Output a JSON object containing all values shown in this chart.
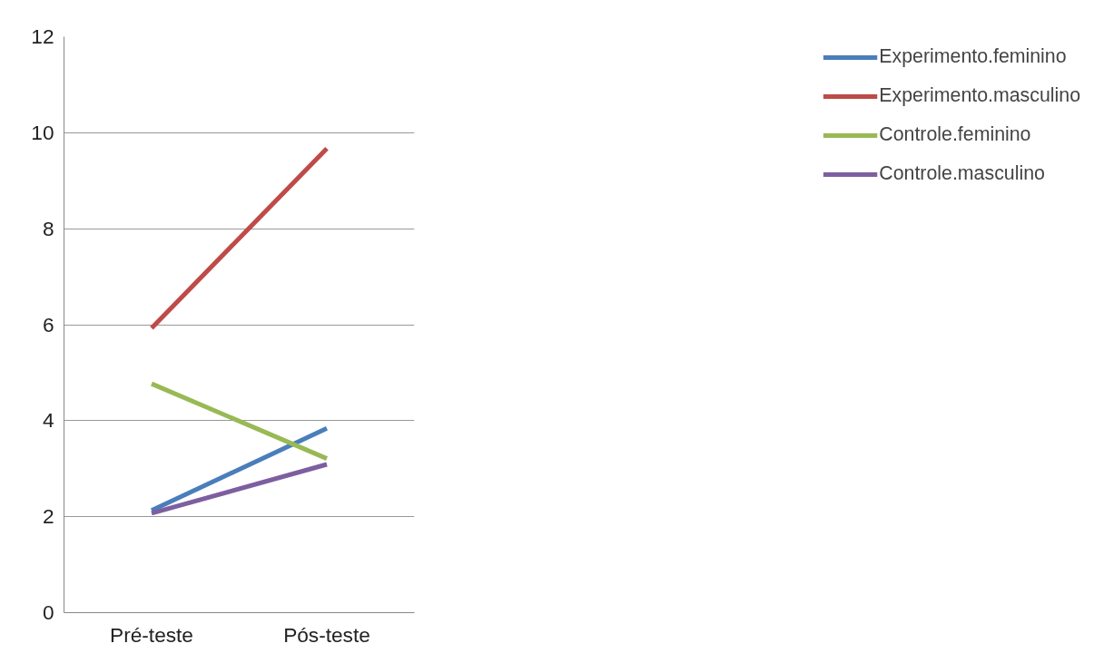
{
  "chart_data": {
    "type": "line",
    "categories": [
      "Pré-teste",
      "Pós-teste"
    ],
    "series": [
      {
        "name": "Experimento.feminino",
        "color": "#4a7ebb",
        "values": [
          2.13,
          3.84
        ]
      },
      {
        "name": "Experimento.masculino",
        "color": "#be4b48",
        "values": [
          5.93,
          9.67
        ]
      },
      {
        "name": "Controle.feminino",
        "color": "#98b954",
        "values": [
          4.77,
          3.21
        ]
      },
      {
        "name": "Controle.masculino",
        "color": "#7d5fa0",
        "values": [
          2.07,
          3.09
        ]
      }
    ],
    "ylim": [
      0,
      12
    ],
    "yticks": [
      0,
      2,
      4,
      6,
      8,
      10,
      12
    ],
    "grid": "y",
    "legend": "right",
    "marker": "none",
    "line_style": "solid"
  }
}
